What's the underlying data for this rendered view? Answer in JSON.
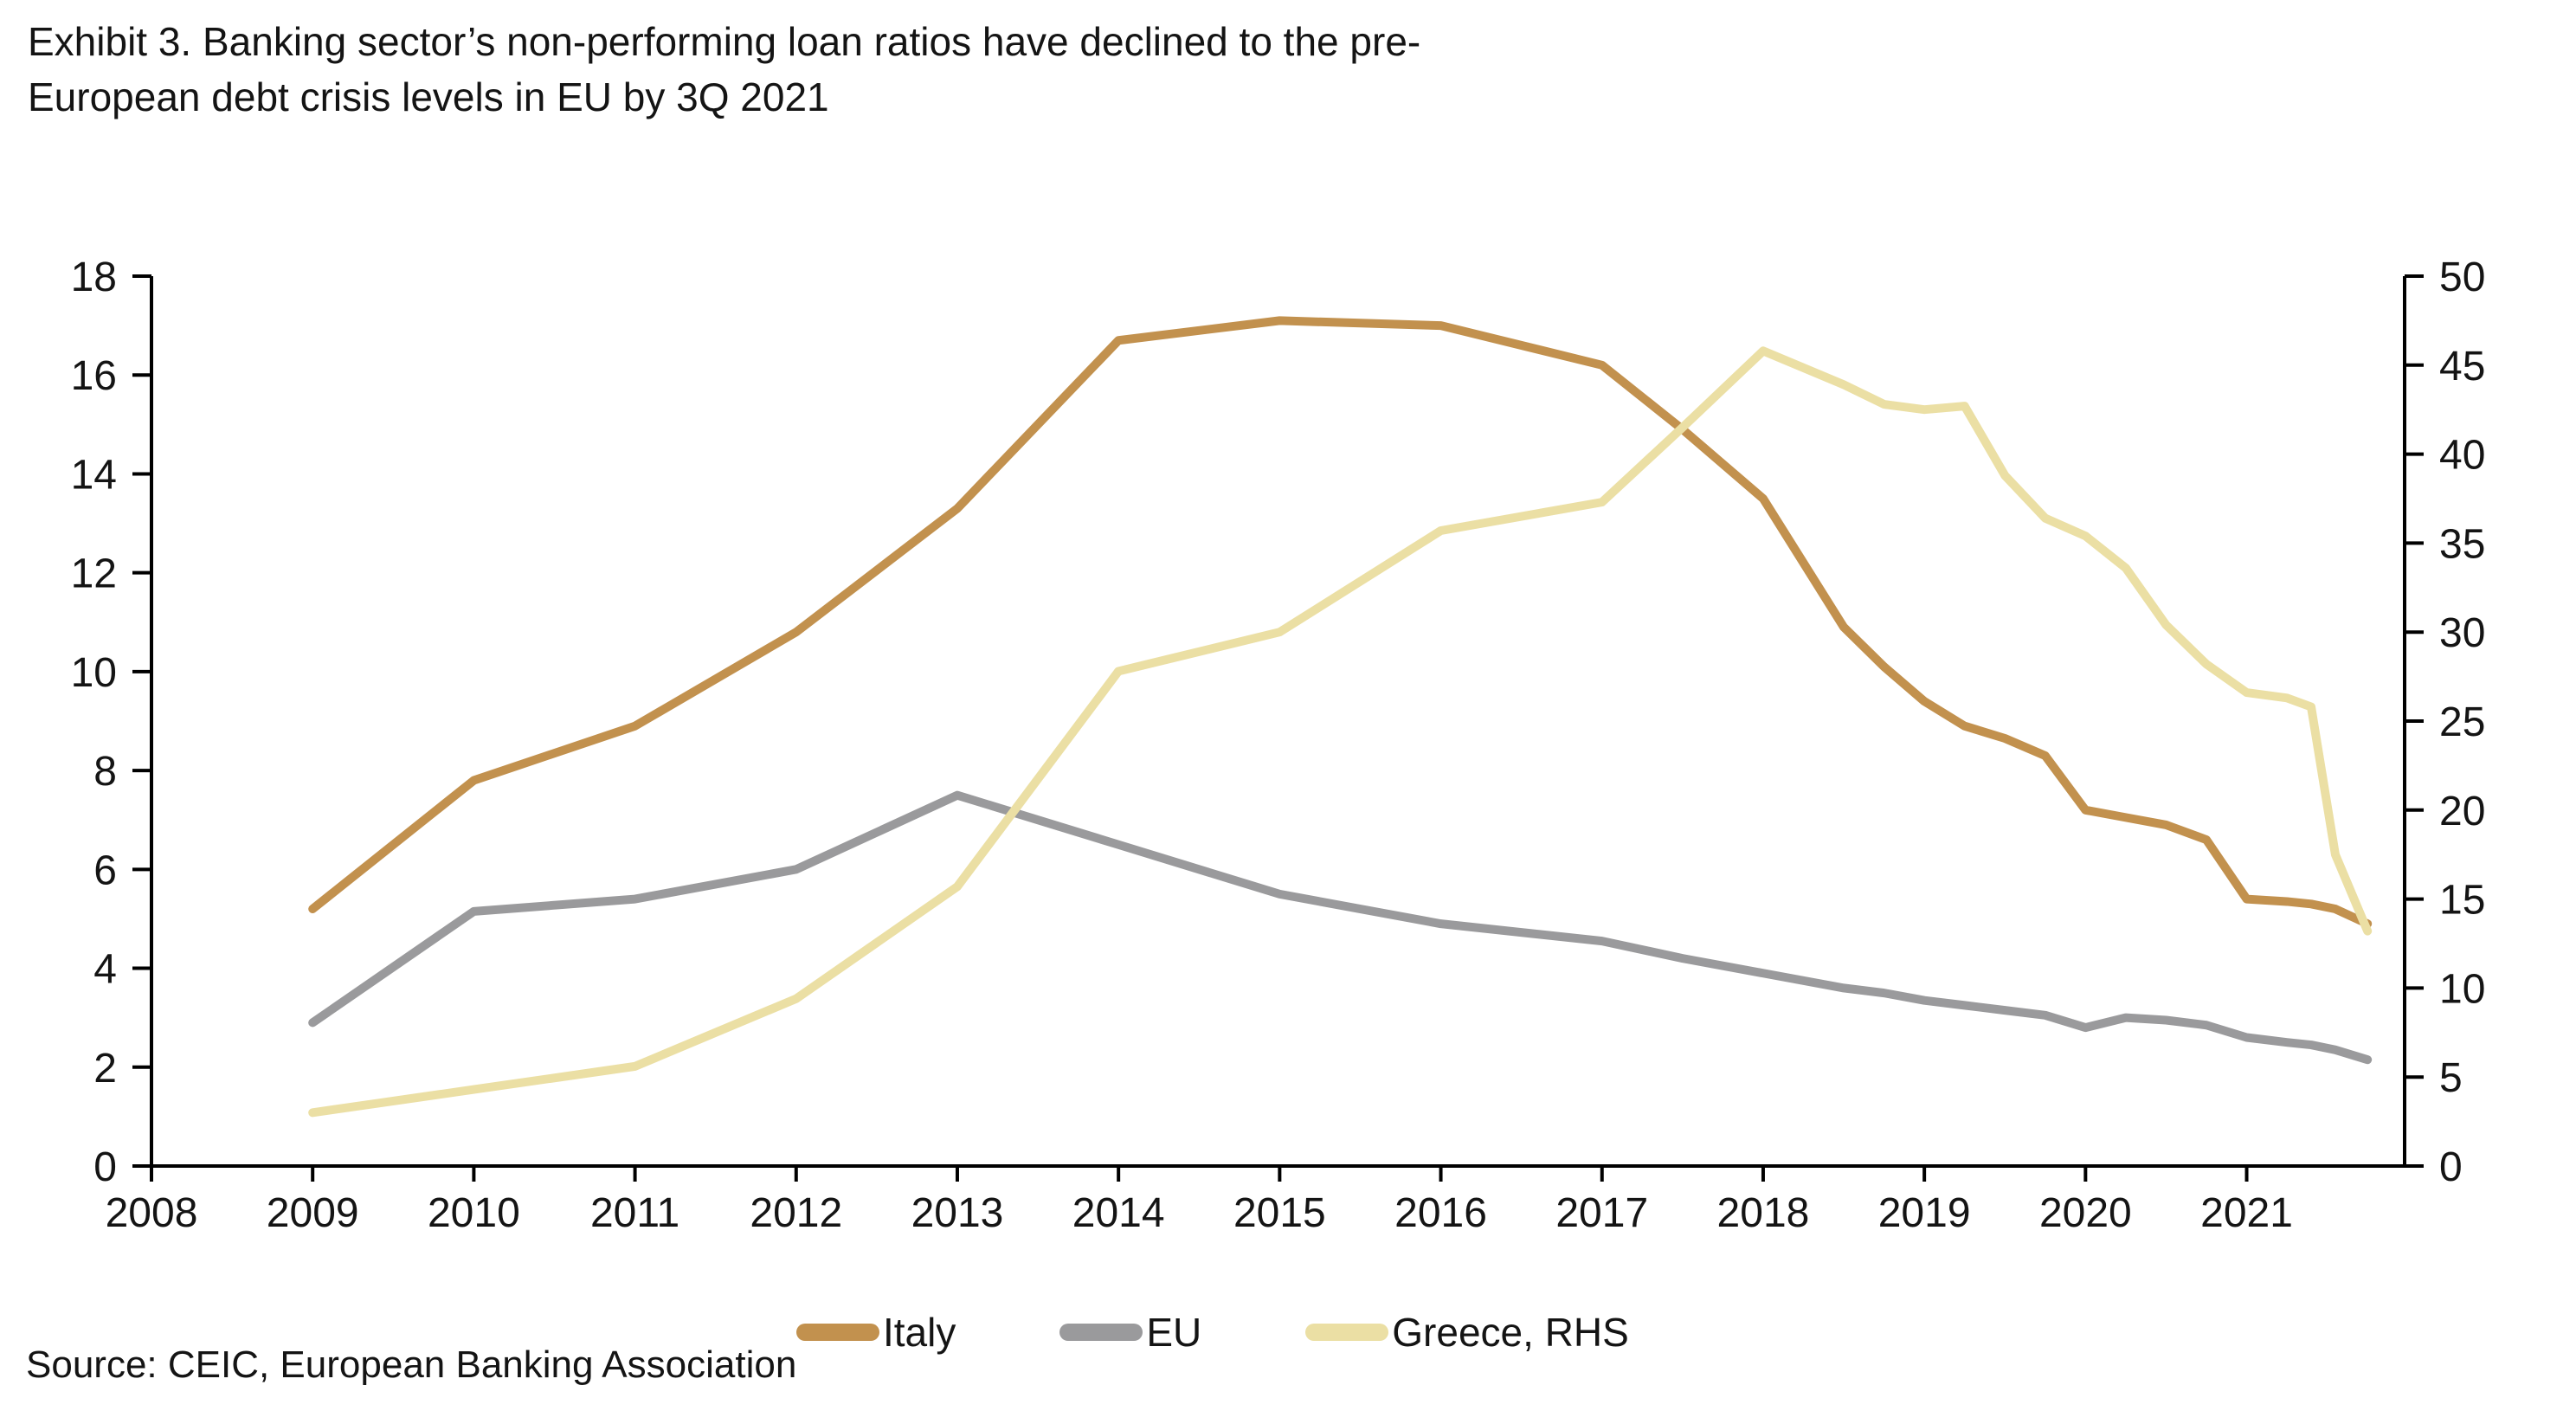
{
  "header": {
    "title_line1": "Exhibit 3. Banking sector’s non-performing loan ratios have declined to the pre-",
    "title_line2": "European debt crisis levels in EU by 3Q 2021"
  },
  "source": "Source: CEIC, European Banking Association",
  "chart_data": {
    "type": "line",
    "title": "Exhibit 3. Banking sector’s non-performing loan ratios have declined to the pre-European debt crisis levels in EU by 3Q 2021",
    "grid": false,
    "legend_position": "bottom",
    "x_axis": {
      "labels": [
        2008,
        2009,
        2010,
        2011,
        2012,
        2013,
        2014,
        2015,
        2016,
        2017,
        2018,
        2019,
        2020,
        2021
      ],
      "min": 2008,
      "max": 2021.98
    },
    "left_axis": {
      "min": 0,
      "max": 18,
      "ticks": [
        0,
        2,
        4,
        6,
        8,
        10,
        12,
        14,
        16,
        18
      ]
    },
    "right_axis": {
      "min": 0,
      "max": 50,
      "ticks": [
        0,
        5,
        10,
        15,
        20,
        25,
        30,
        35,
        40,
        45,
        50
      ]
    },
    "x": [
      2009,
      2010,
      2011,
      2012,
      2013,
      2014,
      2015,
      2016,
      2017,
      2017.5,
      2018,
      2018.5,
      2018.75,
      2019,
      2019.25,
      2019.5,
      2019.75,
      2020,
      2020.25,
      2020.5,
      2020.75,
      2021,
      2021.25,
      2021.4,
      2021.55,
      2021.75
    ],
    "series": [
      {
        "name": "Italy",
        "axis": "left",
        "color": "#C2914E",
        "values": [
          5.2,
          7.8,
          8.9,
          10.8,
          13.3,
          16.7,
          17.1,
          17.0,
          16.2,
          14.9,
          13.5,
          10.9,
          10.1,
          9.4,
          8.9,
          8.65,
          8.3,
          7.2,
          7.05,
          6.9,
          6.6,
          5.4,
          5.35,
          5.3,
          5.2,
          4.9
        ]
      },
      {
        "name": "EU",
        "axis": "left",
        "color": "#9A9A9C",
        "values": [
          2.9,
          5.15,
          5.4,
          6.0,
          7.5,
          6.5,
          5.5,
          4.9,
          4.55,
          4.2,
          3.9,
          3.6,
          3.5,
          3.35,
          3.25,
          3.15,
          3.05,
          2.8,
          3.0,
          2.95,
          2.85,
          2.6,
          2.5,
          2.45,
          2.35,
          2.15
        ]
      },
      {
        "name": "Greece, RHS",
        "axis": "right",
        "color": "#EBDFA4",
        "values": [
          3.0,
          4.3,
          5.6,
          9.4,
          15.7,
          27.8,
          30.0,
          35.7,
          37.3,
          41.5,
          45.8,
          43.9,
          42.8,
          42.5,
          42.7,
          38.8,
          36.4,
          35.4,
          33.6,
          30.4,
          28.2,
          26.6,
          26.3,
          25.8,
          17.5,
          13.2
        ]
      }
    ]
  }
}
